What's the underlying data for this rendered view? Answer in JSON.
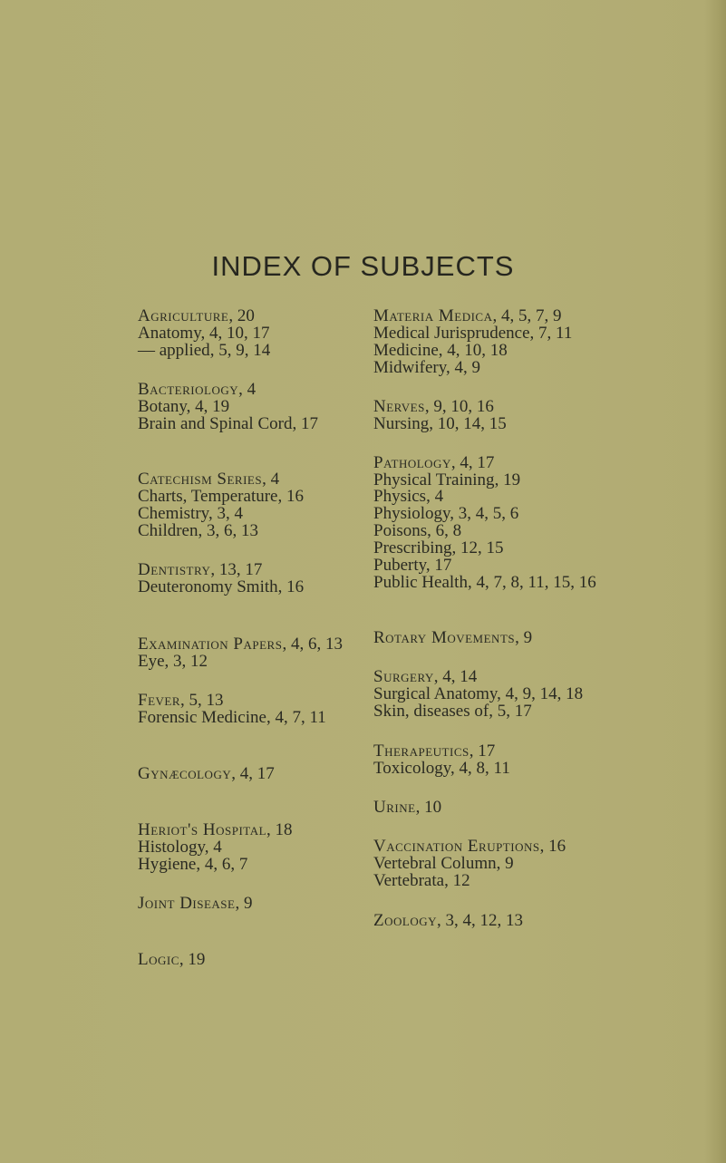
{
  "title": "INDEX OF SUBJECTS",
  "left_column": [
    {
      "head": "Agriculture",
      "rest": ", 20",
      "small_caps": true
    },
    {
      "head": "Anatomy",
      "rest": ", 4, 10, 17",
      "small_caps": false
    },
    {
      "head": "— applied",
      "rest": ", 5, 9, 14",
      "small_caps": false
    },
    {
      "head": "Bacteriology",
      "rest": ", 4",
      "small_caps": true
    },
    {
      "head": "Botany",
      "rest": ", 4, 19",
      "small_caps": false
    },
    {
      "head": "Brain and Spinal Cord",
      "rest": ", 17",
      "small_caps": false
    },
    {
      "head": "Catechism Series",
      "rest": ", 4",
      "small_caps": true
    },
    {
      "head": "Charts, Temperature",
      "rest": ", 16",
      "small_caps": false
    },
    {
      "head": "Chemistry",
      "rest": ", 3, 4",
      "small_caps": false
    },
    {
      "head": "Children",
      "rest": ", 3, 6, 13",
      "small_caps": false
    },
    {
      "head": "Dentistry",
      "rest": ", 13, 17",
      "small_caps": true
    },
    {
      "head": "Deuteronomy Smith",
      "rest": ", 16",
      "small_caps": false
    },
    {
      "head": "Examination Papers",
      "rest": ", 4, 6, 13",
      "small_caps": true
    },
    {
      "head": "Eye",
      "rest": ", 3, 12",
      "small_caps": false
    },
    {
      "head": "Fever",
      "rest": ", 5, 13",
      "small_caps": true
    },
    {
      "head": "Forensic Medicine",
      "rest": ", 4, 7, 11",
      "small_caps": false
    },
    {
      "head": "Gynæcology",
      "rest": ", 4, 17",
      "small_caps": true
    },
    {
      "head": "Heriot's Hospital",
      "rest": ", 18",
      "small_caps": true
    },
    {
      "head": "Histology",
      "rest": ", 4",
      "small_caps": false
    },
    {
      "head": "Hygiene",
      "rest": ", 4, 6, 7",
      "small_caps": false
    },
    {
      "head": "Joint Disease",
      "rest": ", 9",
      "small_caps": true
    },
    {
      "head": "Logic",
      "rest": ", 19",
      "small_caps": true
    }
  ],
  "right_column": [
    {
      "head": "Materia Medica",
      "rest": ", 4, 5, 7, 9",
      "small_caps": true
    },
    {
      "head": "Medical Jurisprudence",
      "rest": ", 7, 11",
      "small_caps": false
    },
    {
      "head": "Medicine",
      "rest": ", 4, 10, 18",
      "small_caps": false
    },
    {
      "head": "Midwifery",
      "rest": ", 4, 9",
      "small_caps": false
    },
    {
      "head": "Nerves",
      "rest": ", 9, 10, 16",
      "small_caps": true
    },
    {
      "head": "Nursing",
      "rest": ", 10, 14, 15",
      "small_caps": false
    },
    {
      "head": "Pathology",
      "rest": ", 4, 17",
      "small_caps": true
    },
    {
      "head": "Physical Training",
      "rest": ", 19",
      "small_caps": false
    },
    {
      "head": "Physics",
      "rest": ", 4",
      "small_caps": false
    },
    {
      "head": "Physiology",
      "rest": ", 3, 4, 5, 6",
      "small_caps": false
    },
    {
      "head": "Poisons",
      "rest": ", 6, 8",
      "small_caps": false
    },
    {
      "head": "Prescribing",
      "rest": ", 12, 15",
      "small_caps": false
    },
    {
      "head": "Puberty",
      "rest": ", 17",
      "small_caps": false
    },
    {
      "head": "Public Health",
      "rest": ", 4, 7, 8, 11, 15, 16",
      "small_caps": false
    },
    {
      "head": "Rotary Movements",
      "rest": ", 9",
      "small_caps": true
    },
    {
      "head": "Surgery",
      "rest": ", 4, 14",
      "small_caps": true
    },
    {
      "head": "Surgical Anatomy",
      "rest": ", 4, 9, 14, 18",
      "small_caps": false
    },
    {
      "head": "Skin, diseases of",
      "rest": ", 5, 17",
      "small_caps": false
    },
    {
      "head": "Therapeutics",
      "rest": ", 17",
      "small_caps": true
    },
    {
      "head": "Toxicology",
      "rest": ", 4, 8, 11",
      "small_caps": false
    },
    {
      "head": "Urine",
      "rest": ", 10",
      "small_caps": true
    },
    {
      "head": "Vaccination Eruptions",
      "rest": ", 16",
      "small_caps": true
    },
    {
      "head": "Vertebral Column",
      "rest": ", 9",
      "small_caps": false
    },
    {
      "head": "Vertebrata",
      "rest": ", 12",
      "small_caps": false
    },
    {
      "head": "Zoology",
      "rest": ", 3, 4, 12, 13",
      "small_caps": true
    }
  ]
}
